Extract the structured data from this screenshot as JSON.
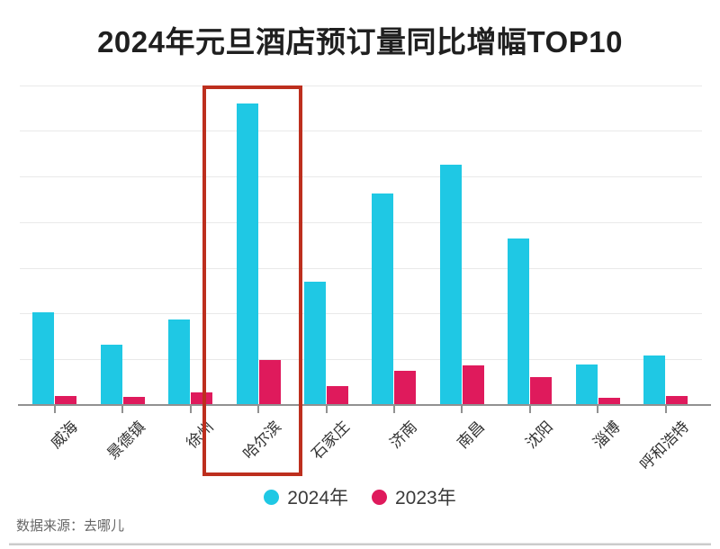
{
  "chart_data": {
    "type": "bar",
    "title": "2024年元旦酒店预订量同比增幅TOP10",
    "categories": [
      "威海",
      "景德镇",
      "徐州",
      "哈尔滨",
      "石家庄",
      "济南",
      "南昌",
      "沈阳",
      "淄博",
      "呼和浩特"
    ],
    "series": [
      {
        "name": "2024年",
        "color": "#1FC8E4",
        "values": [
          2.03,
          1.32,
          1.88,
          6.59,
          2.69,
          4.63,
          5.25,
          3.64,
          0.88,
          1.09
        ]
      },
      {
        "name": "2023年",
        "color": "#DF1A5C",
        "values": [
          0.2,
          0.17,
          0.27,
          0.98,
          0.42,
          0.74,
          0.86,
          0.62,
          0.15,
          0.19
        ]
      }
    ],
    "y_axis": {
      "labels_visible": false,
      "gridline_interval": 1,
      "ylim": [
        0,
        7
      ],
      "grid": true
    },
    "legend_position": "bottom",
    "highlight": {
      "category": "哈尔滨",
      "box_color": "#BD2F1E"
    }
  },
  "source": {
    "label": "数据来源：去哪儿"
  }
}
